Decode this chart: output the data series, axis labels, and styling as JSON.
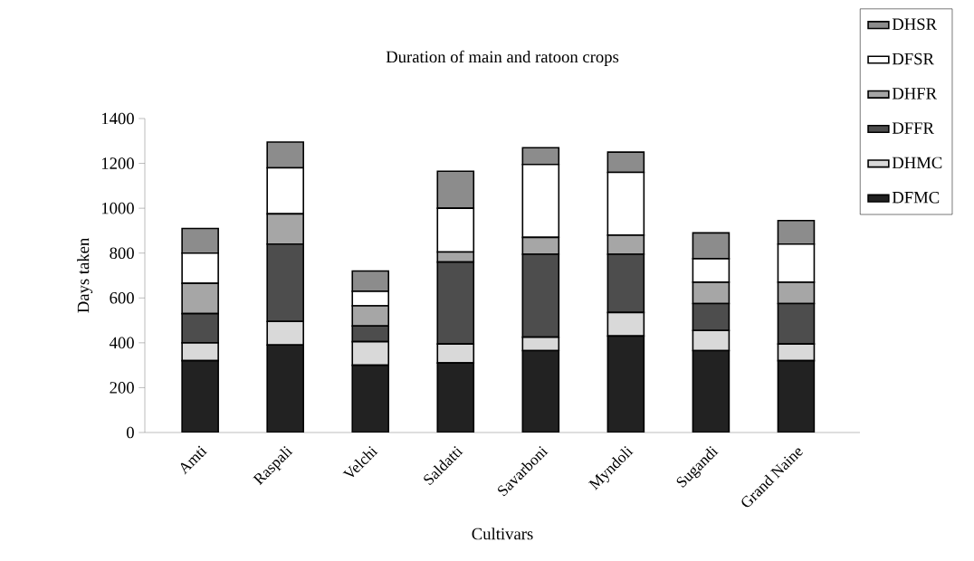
{
  "chart_data": {
    "type": "bar",
    "stacked": true,
    "title": "Duration of main and ratoon crops",
    "xlabel": "Cultivars",
    "ylabel": "Days taken",
    "categories": [
      "Amti",
      "Raspali",
      "Velchi",
      "Saldatti",
      "Savarboni",
      "Myndoli",
      "Sugandi",
      "Grand Naine"
    ],
    "series": [
      {
        "name": "DFMC",
        "color": "#222222",
        "values": [
          320,
          390,
          300,
          310,
          365,
          430,
          365,
          320
        ]
      },
      {
        "name": "DHMC",
        "color": "#d9d9d9",
        "values": [
          80,
          105,
          105,
          85,
          60,
          105,
          90,
          75
        ]
      },
      {
        "name": "DFFR",
        "color": "#4d4d4d",
        "values": [
          130,
          345,
          70,
          365,
          370,
          260,
          120,
          180
        ]
      },
      {
        "name": "DHFR",
        "color": "#a6a6a6",
        "values": [
          135,
          135,
          90,
          45,
          75,
          85,
          95,
          95
        ]
      },
      {
        "name": "DFSR",
        "color": "#ffffff",
        "values": [
          135,
          205,
          65,
          195,
          325,
          280,
          105,
          170
        ]
      },
      {
        "name": "DHSR",
        "color": "#8c8c8c",
        "values": [
          110,
          115,
          90,
          165,
          75,
          90,
          115,
          105
        ]
      }
    ],
    "ylim": [
      0,
      1400
    ],
    "yticks": [
      0,
      200,
      400,
      600,
      800,
      1000,
      1200,
      1400
    ],
    "legend": "top right"
  }
}
